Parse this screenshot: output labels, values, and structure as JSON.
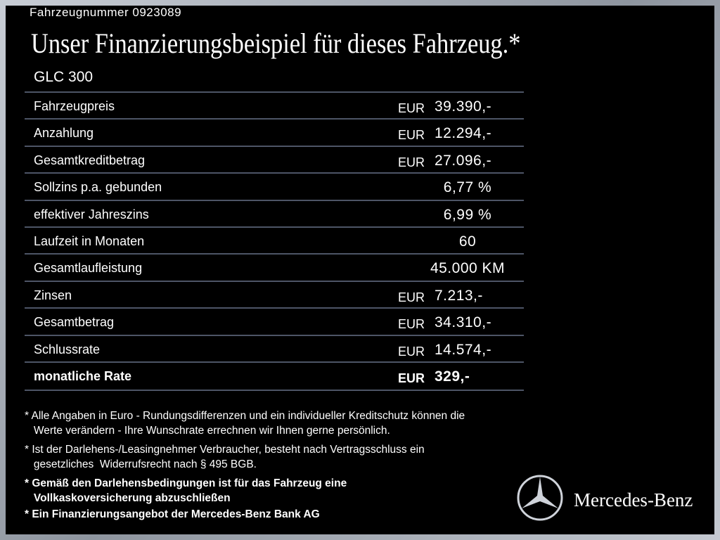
{
  "header": {
    "vehicle_number": "Fahrzeugnummer  0923089",
    "title": "Unser Finanzierungsbeispiel für dieses Fahrzeug.*",
    "model": "GLC 300"
  },
  "table": {
    "rows": [
      {
        "label": "Fahrzeugpreis",
        "currency": "EUR",
        "value": "39.390,-"
      },
      {
        "label": "Anzahlung",
        "currency": "EUR",
        "value": "12.294,-"
      },
      {
        "label": "Gesamtkreditbetrag",
        "currency": "EUR",
        "value": "27.096,-"
      },
      {
        "label": "Sollzins p.a. gebunden",
        "value": "6,77 %"
      },
      {
        "label": "effektiver Jahreszins",
        "value": "6,99 %"
      },
      {
        "label": "Laufzeit in Monaten",
        "value": "60"
      },
      {
        "label": "Gesamtlaufleistung",
        "value": "45.000 KM"
      },
      {
        "label": "Zinsen",
        "currency": "EUR",
        "value": "7.213,-"
      },
      {
        "label": "Gesamtbetrag",
        "currency": "EUR",
        "value": "34.310,-"
      },
      {
        "label": "Schlussrate",
        "currency": "EUR",
        "value": "14.574,-"
      },
      {
        "label": "monatliche Rate",
        "currency": "EUR",
        "value": "329,-"
      }
    ]
  },
  "footnotes": [
    "* Alle Angaben in Euro - Rundungsdifferenzen und ein individueller Kreditschutz können die\n   Werte verändern - Ihre Wunschrate errechnen wir Ihnen gerne persönlich.",
    "* Ist der Darlehens-/Leasingnehmer Verbraucher, besteht nach Vertragsschluss ein\n   gesetzliches  Widerrufsrecht nach § 495 BGB.",
    "* Gemäß den Darlehensbedingungen ist für das Fahrzeug eine\n   Vollkaskoversicherung abzuschließen",
    "* Ein Finanzierungsangebot der Mercedes-Benz Bank AG"
  ],
  "brand": "Mercedes-Benz"
}
